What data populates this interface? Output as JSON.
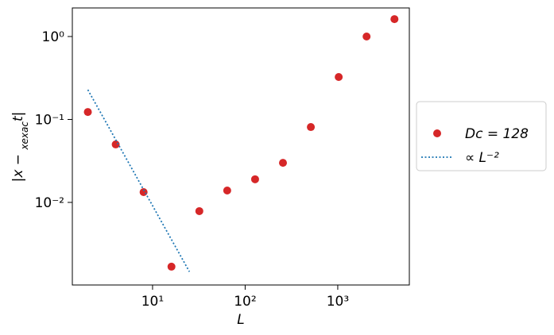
{
  "chart_data": {
    "type": "scatter",
    "xlabel": "L",
    "ylabel": "|x − xexact|",
    "xscale": "log",
    "yscale": "log",
    "xlim": [
      1.36,
      5930
    ],
    "ylim": [
      0.00101,
      2.21
    ],
    "xticks": [
      {
        "value": 10,
        "label": "10¹"
      },
      {
        "value": 100,
        "label": "10²"
      },
      {
        "value": 1000,
        "label": "10³"
      }
    ],
    "yticks": [
      {
        "value": 0.01,
        "label": "10⁻²"
      },
      {
        "value": 0.1,
        "label": "10⁻¹"
      },
      {
        "value": 1,
        "label": "10⁰"
      }
    ],
    "legend": "outside right",
    "series": [
      {
        "name": "Dc = 128",
        "type": "scatter",
        "color": "#d62728",
        "x": [
          2,
          4,
          8,
          16,
          32,
          64,
          128,
          256,
          512,
          1024,
          2048,
          4096
        ],
        "values": [
          0.123,
          0.05,
          0.0133,
          0.00168,
          0.00785,
          0.0139,
          0.019,
          0.03,
          0.081,
          0.325,
          1.0,
          1.62
        ]
      },
      {
        "name": "∝ L⁻²",
        "type": "line",
        "style": "dotted",
        "color": "#1f77b4",
        "x": [
          2,
          25
        ],
        "values": [
          0.228,
          0.00146
        ]
      }
    ]
  }
}
